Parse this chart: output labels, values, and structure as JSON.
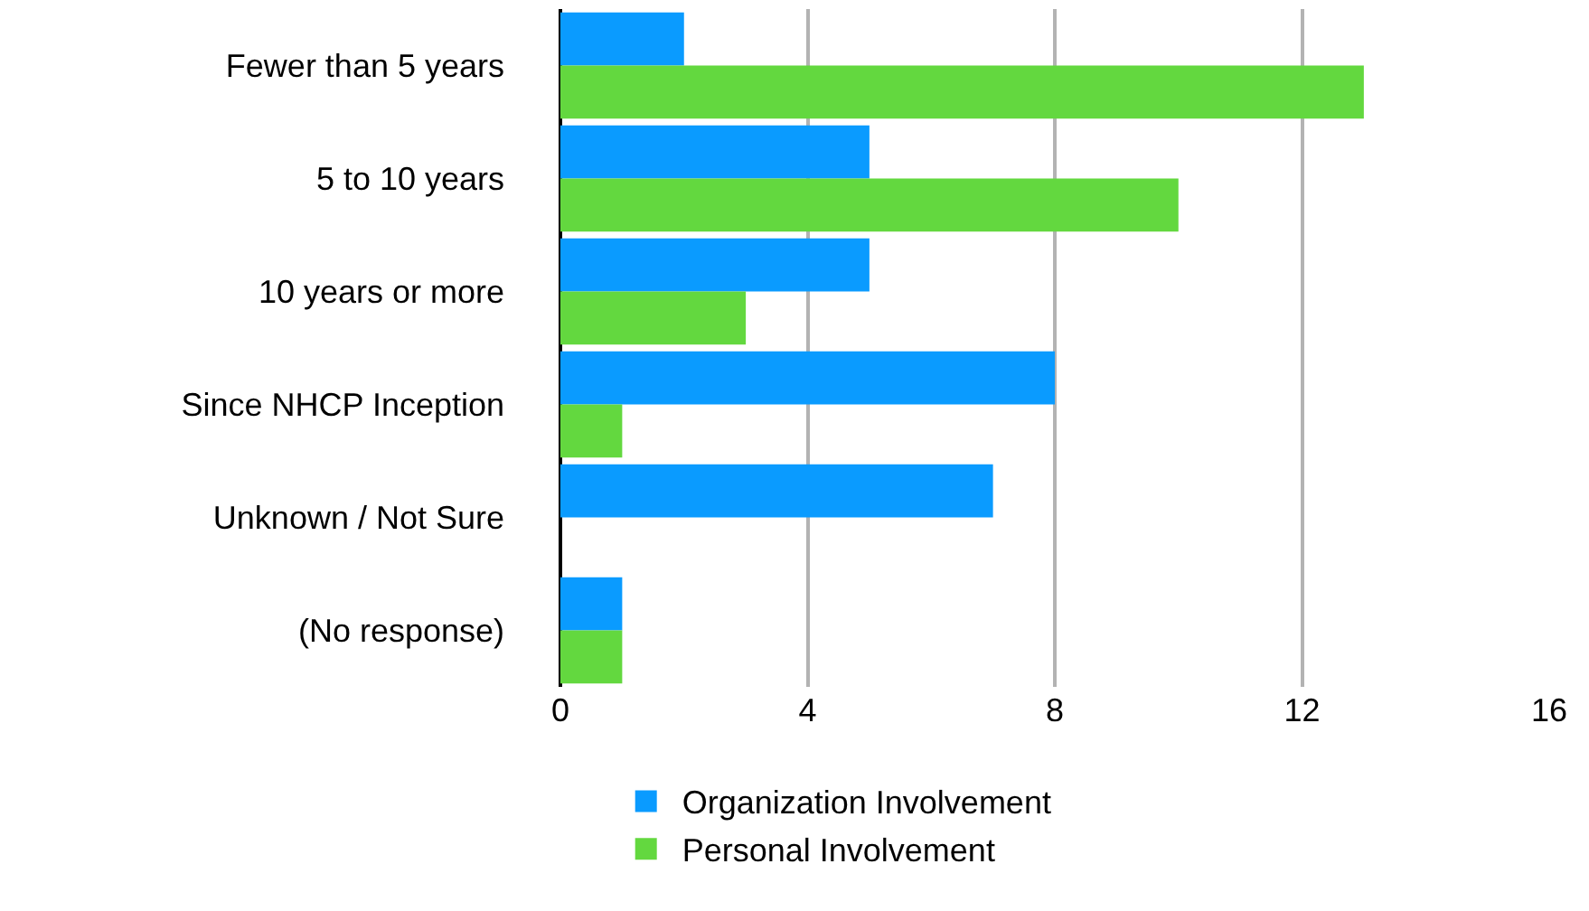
{
  "chart_data": {
    "type": "bar",
    "orientation": "horizontal",
    "categories": [
      "Fewer than 5 years",
      "5 to 10 years",
      "10 years or more",
      "Since NHCP Inception",
      "Unknown / Not Sure",
      "(No response)"
    ],
    "series": [
      {
        "name": "Organization Involvement",
        "color": "#0a9bff",
        "values": [
          2,
          5,
          5,
          8,
          7,
          1
        ]
      },
      {
        "name": "Personal Involvement",
        "color": "#63d83f",
        "values": [
          13,
          10,
          3,
          1,
          null,
          1
        ]
      }
    ],
    "xlim": [
      0,
      16
    ],
    "xticks": [
      0,
      4,
      8,
      12,
      16
    ],
    "grid": "x",
    "legend": "bottom"
  }
}
